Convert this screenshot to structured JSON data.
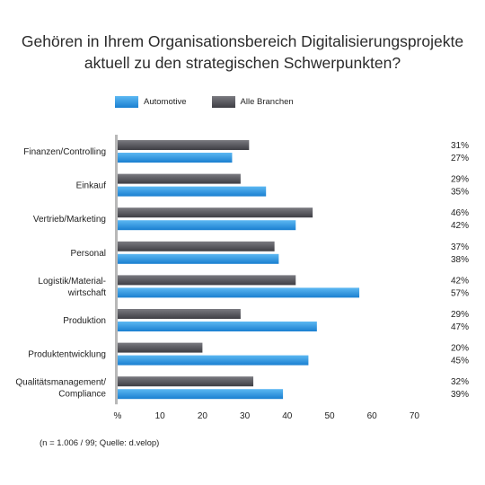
{
  "title": {
    "line1": "Gehören in Ihrem Organisationsbereich Digitalisierungsprojekte",
    "line2": "aktuell zu den strategischen Schwerpunkten?"
  },
  "footnote": "(n = 1.006 / 99; Quelle: d.velop)",
  "colors": {
    "automotive_light": "#5cb8f2",
    "automotive_dark": "#1a7fd0",
    "alle_light": "#7a7a80",
    "alle_dark": "#3e3e44"
  },
  "chart_data": {
    "type": "bar",
    "orientation": "horizontal",
    "title": "Gehören in Ihrem Organisationsbereich Digitalisierungsprojekte aktuell zu den strategischen Schwerpunkten?",
    "categories": [
      [
        "Finanzen/Controlling"
      ],
      [
        "Einkauf"
      ],
      [
        "Vertrieb/Marketing"
      ],
      [
        "Personal"
      ],
      [
        "Logistik/Material-",
        "wirtschaft"
      ],
      [
        "Produktion"
      ],
      [
        "Produktentwicklung"
      ],
      [
        "Qualitätsmanagement/",
        "Compliance"
      ]
    ],
    "series": [
      {
        "name": "Alle Branchen",
        "values": [
          31,
          29,
          46,
          37,
          42,
          29,
          20,
          32
        ]
      },
      {
        "name": "Automotive",
        "values": [
          27,
          35,
          42,
          38,
          57,
          47,
          45,
          39
        ]
      }
    ],
    "legend": [
      "Automotive",
      "Alle Branchen"
    ],
    "xticks": [
      "%",
      "10",
      "20",
      "30",
      "40",
      "50",
      "60",
      "70"
    ],
    "xlim": [
      0,
      70
    ],
    "grid": false,
    "legend_position": "top-left"
  }
}
